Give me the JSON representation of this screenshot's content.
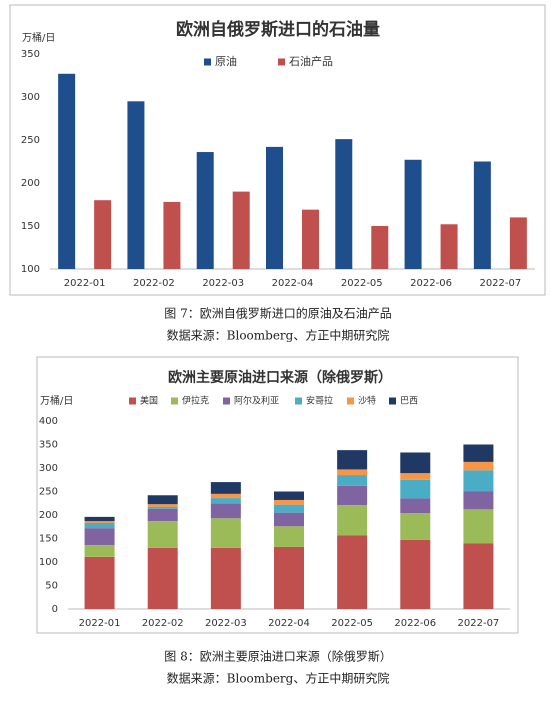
{
  "chart_data": [
    {
      "type": "bar",
      "title": "欧洲自俄罗斯进口的石油量",
      "y_label": "万桶/日",
      "categories": [
        "2022-01",
        "2022-02",
        "2022-03",
        "2022-04",
        "2022-05",
        "2022-06",
        "2022-07"
      ],
      "series": [
        {
          "name": "原油",
          "color": "#1f4e8c",
          "values": [
            327,
            295,
            236,
            242,
            251,
            227,
            225
          ]
        },
        {
          "name": "石油产品",
          "color": "#c0504d",
          "values": [
            180,
            178,
            190,
            169,
            150,
            152,
            160
          ]
        }
      ],
      "ylim": [
        100,
        350
      ],
      "yticks": [
        100,
        150,
        200,
        250,
        300,
        350
      ],
      "grid": false,
      "stacked": false,
      "legend": "top"
    },
    {
      "type": "bar",
      "title": "欧洲主要原油进口来源（除俄罗斯）",
      "y_label": "万桶/日",
      "categories": [
        "2022-01",
        "2022-02",
        "2022-03",
        "2022-04",
        "2022-05",
        "2022-06",
        "2022-07"
      ],
      "series": [
        {
          "name": "美国",
          "color": "#c0504d",
          "values": [
            111,
            130,
            130,
            132,
            157,
            147,
            140
          ]
        },
        {
          "name": "伊拉克",
          "color": "#9bbb59",
          "values": [
            25,
            57,
            63,
            44,
            64,
            57,
            72
          ]
        },
        {
          "name": "阿尔及利亚",
          "color": "#8064a2",
          "values": [
            36,
            26,
            32,
            29,
            41,
            31,
            38
          ]
        },
        {
          "name": "安哥拉",
          "color": "#4bacc6",
          "values": [
            11,
            4,
            11,
            17,
            23,
            40,
            45
          ]
        },
        {
          "name": "沙特",
          "color": "#f79646",
          "values": [
            4,
            6,
            9,
            10,
            12,
            14,
            18
          ]
        },
        {
          "name": "巴西",
          "color": "#1f3864",
          "values": [
            9,
            19,
            25,
            18,
            41,
            44,
            37
          ]
        }
      ],
      "ylim": [
        0,
        400
      ],
      "yticks": [
        0,
        50,
        100,
        150,
        200,
        250,
        300,
        350,
        400
      ],
      "grid": false,
      "stacked": true,
      "legend": "top"
    }
  ],
  "captions": [
    {
      "figure": "图 7：欧洲自俄罗斯进口的原油及石油产品",
      "source": "数据来源：Bloomberg、方正中期研究院"
    },
    {
      "figure": "图 8：欧洲主要原油进口来源（除俄罗斯）",
      "source": "数据来源：Bloomberg、方正中期研究院"
    }
  ]
}
